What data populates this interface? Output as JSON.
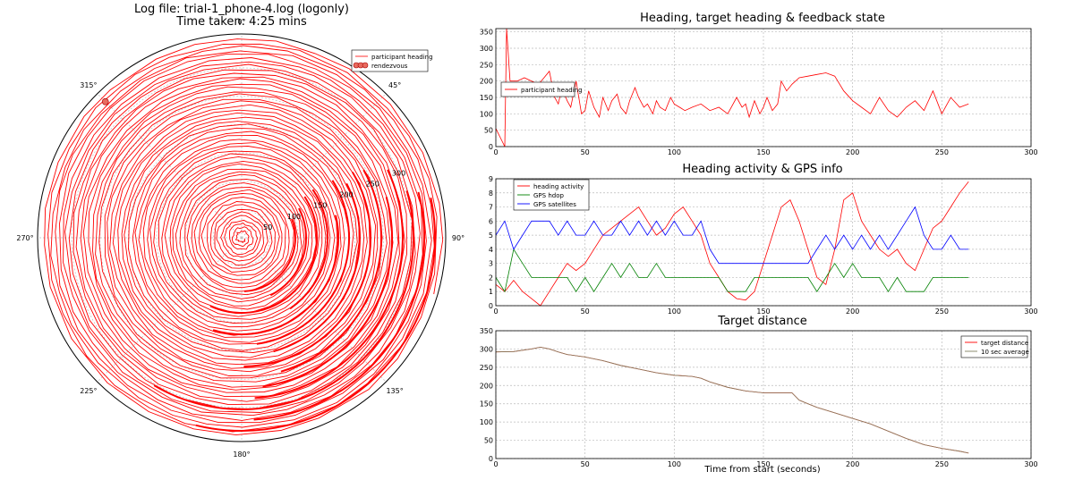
{
  "chart_data": [
    {
      "type": "scatter",
      "subtype": "polar",
      "title": "Log file: trial-1_phone-4.log (logonly)",
      "subtitle": "Time taken: 4:25 mins",
      "angle_labels": [
        "0°",
        "45°",
        "90°",
        "135°",
        "180°",
        "225°",
        "270°",
        "315°"
      ],
      "radial_labels": [
        "50",
        "100",
        "150",
        "200",
        "250",
        "300"
      ],
      "rmax": 360,
      "legend": [
        "participant heading",
        "rendezvous"
      ],
      "legend_position": "top-right",
      "series": [
        {
          "name": "participant heading",
          "color": "#ff0000"
        },
        {
          "name": "rendezvous",
          "color": "#e86b5f",
          "points": [
            {
              "angle_deg": 315,
              "r": 340
            }
          ]
        }
      ]
    },
    {
      "type": "line",
      "title": "Heading, target heading & feedback state",
      "xlim": [
        0,
        300
      ],
      "ylim": [
        0,
        360
      ],
      "xticks": [
        "0",
        "50",
        "100",
        "150",
        "200",
        "250",
        "300"
      ],
      "yticks": [
        "0",
        "50",
        "100",
        "150",
        "200",
        "250",
        "300",
        "350"
      ],
      "legend": [
        "participant heading"
      ],
      "legend_position": "upper-left",
      "grid": true,
      "series": [
        {
          "name": "participant heading",
          "color": "#ff0000",
          "x": [
            0,
            5,
            6,
            8,
            12,
            16,
            20,
            24,
            27,
            30,
            33,
            35,
            37,
            40,
            42,
            45,
            48,
            50,
            52,
            55,
            58,
            60,
            63,
            65,
            68,
            70,
            73,
            75,
            78,
            80,
            83,
            85,
            88,
            90,
            92,
            95,
            98,
            100,
            103,
            106,
            110,
            115,
            120,
            125,
            130,
            135,
            138,
            140,
            142,
            145,
            148,
            150,
            152,
            155,
            158,
            160,
            163,
            166,
            170,
            175,
            180,
            185,
            190,
            195,
            200,
            205,
            210,
            215,
            220,
            225,
            230,
            235,
            240,
            245,
            250,
            255,
            260,
            265
          ],
          "y": [
            55,
            0,
            360,
            200,
            200,
            210,
            200,
            190,
            210,
            230,
            150,
            130,
            180,
            140,
            120,
            200,
            100,
            110,
            170,
            120,
            90,
            150,
            110,
            140,
            160,
            120,
            100,
            140,
            180,
            150,
            120,
            130,
            100,
            140,
            120,
            110,
            150,
            130,
            120,
            110,
            120,
            130,
            110,
            120,
            100,
            150,
            120,
            130,
            90,
            140,
            100,
            120,
            150,
            110,
            130,
            200,
            170,
            190,
            210,
            215,
            220,
            225,
            215,
            170,
            140,
            120,
            100,
            150,
            110,
            90,
            120,
            140,
            110,
            170,
            100,
            150,
            120,
            130
          ]
        }
      ]
    },
    {
      "type": "line",
      "title": "Heading activity & GPS info",
      "xlim": [
        0,
        300
      ],
      "ylim": [
        0,
        9
      ],
      "xticks": [
        "0",
        "50",
        "100",
        "150",
        "200",
        "250",
        "300"
      ],
      "yticks": [
        "0",
        "1",
        "2",
        "3",
        "4",
        "5",
        "6",
        "7",
        "8",
        "9"
      ],
      "legend": [
        "heading activity",
        "GPS hdop",
        "GPS satellites"
      ],
      "legend_position": "upper-left",
      "grid": true,
      "series": [
        {
          "name": "heading activity",
          "color": "#ff0000",
          "x": [
            0,
            5,
            10,
            15,
            20,
            25,
            30,
            35,
            40,
            45,
            50,
            55,
            60,
            65,
            70,
            75,
            80,
            85,
            90,
            95,
            100,
            105,
            110,
            115,
            120,
            125,
            130,
            135,
            140,
            145,
            150,
            155,
            160,
            165,
            170,
            175,
            180,
            185,
            190,
            195,
            200,
            205,
            210,
            215,
            220,
            225,
            230,
            235,
            240,
            245,
            250,
            255,
            260,
            265
          ],
          "y": [
            1.5,
            1.0,
            1.8,
            1.0,
            0.5,
            0.0,
            1.0,
            2.0,
            3.0,
            2.5,
            3.0,
            4.0,
            5.0,
            5.5,
            6.0,
            6.5,
            7.0,
            6.0,
            5.0,
            5.5,
            6.5,
            7.0,
            6.0,
            5.0,
            3.0,
            2.0,
            1.0,
            0.5,
            0.4,
            1.0,
            3.0,
            5.0,
            7.0,
            7.5,
            6.0,
            4.0,
            2.0,
            1.5,
            4.0,
            7.5,
            8.0,
            6.0,
            5.0,
            4.0,
            3.5,
            4.0,
            3.0,
            2.5,
            4.0,
            5.5,
            6.0,
            7.0,
            8.0,
            8.8
          ]
        },
        {
          "name": "GPS hdop",
          "color": "#008000",
          "x": [
            0,
            5,
            10,
            15,
            20,
            25,
            30,
            35,
            40,
            45,
            50,
            55,
            60,
            65,
            70,
            75,
            80,
            85,
            90,
            95,
            100,
            105,
            110,
            115,
            120,
            125,
            130,
            135,
            140,
            145,
            150,
            155,
            160,
            165,
            170,
            175,
            180,
            185,
            190,
            195,
            200,
            205,
            210,
            215,
            220,
            225,
            230,
            235,
            240,
            245,
            250,
            255,
            260,
            265
          ],
          "y": [
            2,
            1,
            4,
            3,
            2,
            2,
            2,
            2,
            2,
            1,
            2,
            1,
            2,
            3,
            2,
            3,
            2,
            2,
            3,
            2,
            2,
            2,
            2,
            2,
            2,
            2,
            1,
            1,
            1,
            2,
            2,
            2,
            2,
            2,
            2,
            2,
            1,
            2,
            3,
            2,
            3,
            2,
            2,
            2,
            1,
            2,
            1,
            1,
            1,
            2,
            2,
            2,
            2,
            2
          ]
        },
        {
          "name": "GPS satellites",
          "color": "#0000ff",
          "x": [
            0,
            5,
            10,
            15,
            20,
            25,
            30,
            35,
            40,
            45,
            50,
            55,
            60,
            65,
            70,
            75,
            80,
            85,
            90,
            95,
            100,
            105,
            110,
            115,
            120,
            125,
            130,
            135,
            140,
            145,
            150,
            155,
            160,
            165,
            170,
            175,
            180,
            185,
            190,
            195,
            200,
            205,
            210,
            215,
            220,
            225,
            230,
            235,
            240,
            245,
            250,
            255,
            260,
            265
          ],
          "y": [
            5,
            6,
            4,
            5,
            6,
            6,
            6,
            5,
            6,
            5,
            5,
            6,
            5,
            5,
            6,
            5,
            6,
            5,
            6,
            5,
            6,
            5,
            5,
            6,
            4,
            3,
            3,
            3,
            3,
            3,
            3,
            3,
            3,
            3,
            3,
            3,
            4,
            5,
            4,
            5,
            4,
            5,
            4,
            5,
            4,
            5,
            6,
            7,
            5,
            4,
            4,
            5,
            4,
            4
          ]
        }
      ]
    },
    {
      "type": "line",
      "title": "Target distance",
      "xlabel": "Time from start (seconds)",
      "xlim": [
        0,
        300
      ],
      "ylim": [
        0,
        350
      ],
      "xticks": [
        "0",
        "50",
        "100",
        "150",
        "200",
        "250",
        "300"
      ],
      "yticks": [
        "0",
        "50",
        "100",
        "150",
        "200",
        "250",
        "300",
        "350"
      ],
      "legend": [
        "target distance",
        "10 sec average"
      ],
      "legend_position": "top-right",
      "grid": true,
      "series": [
        {
          "name": "target distance",
          "color": "#ff0000",
          "x": [
            0,
            10,
            20,
            25,
            30,
            35,
            40,
            50,
            60,
            70,
            80,
            90,
            100,
            110,
            115,
            120,
            130,
            140,
            150,
            160,
            163,
            166,
            170,
            175,
            180,
            190,
            200,
            210,
            220,
            230,
            240,
            250,
            260,
            265
          ],
          "y": [
            292,
            293,
            300,
            305,
            300,
            292,
            285,
            278,
            268,
            255,
            245,
            235,
            228,
            225,
            220,
            210,
            195,
            185,
            180,
            180,
            180,
            180,
            160,
            150,
            140,
            125,
            110,
            95,
            75,
            55,
            38,
            28,
            20,
            15
          ]
        },
        {
          "name": "10 sec average",
          "color": "#808060",
          "x": [
            0,
            10,
            20,
            25,
            30,
            35,
            40,
            50,
            60,
            70,
            80,
            90,
            100,
            110,
            115,
            120,
            130,
            140,
            150,
            160,
            163,
            166,
            170,
            175,
            180,
            190,
            200,
            210,
            220,
            230,
            240,
            250,
            260,
            265
          ],
          "y": [
            292,
            293,
            300,
            305,
            300,
            292,
            285,
            278,
            268,
            255,
            245,
            235,
            228,
            225,
            220,
            210,
            195,
            185,
            180,
            180,
            180,
            180,
            160,
            150,
            140,
            125,
            110,
            95,
            75,
            55,
            38,
            28,
            20,
            15
          ]
        }
      ]
    }
  ]
}
